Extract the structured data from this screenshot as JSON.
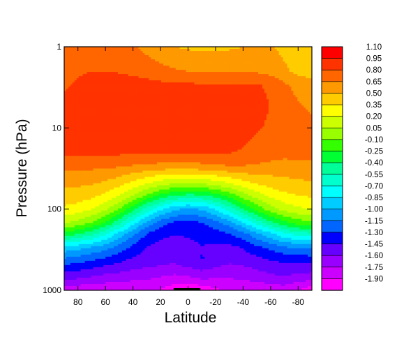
{
  "chart_data": {
    "type": "heatmap",
    "subtype": "filled-contour",
    "title": "",
    "xlabel": "Latitude",
    "ylabel": "Pressure (hPa)",
    "x_reversed": true,
    "xlim": [
      90,
      -90
    ],
    "x_ticks": [
      80,
      60,
      40,
      20,
      0,
      -20,
      -40,
      -60,
      -80
    ],
    "x_tick_labels": [
      "80",
      "60",
      "40",
      "20",
      "0",
      "-20",
      "-40",
      "-60",
      "-80"
    ],
    "y_scale": "log",
    "y_reversed": true,
    "ylim": [
      1000,
      1
    ],
    "y_ticks": [
      1,
      10,
      100,
      1000
    ],
    "y_tick_labels": [
      "1",
      "10",
      "100",
      "1000"
    ],
    "colorbar": {
      "placement": "right",
      "levels": [
        1.1,
        0.95,
        0.8,
        0.65,
        0.5,
        0.35,
        0.2,
        0.05,
        -0.1,
        -0.25,
        -0.4,
        -0.55,
        -0.7,
        -0.85,
        -1.0,
        -1.15,
        -1.3,
        -1.45,
        -1.6,
        -1.75,
        -1.9
      ],
      "labels": [
        "1.10",
        "0.95",
        "0.80",
        "0.65",
        "0.50",
        "0.35",
        "0.20",
        "0.05",
        "-0.10",
        "-0.25",
        "-0.40",
        "-0.55",
        "-0.70",
        "-0.85",
        "-1.00",
        "-1.15",
        "-1.30",
        "-1.45",
        "-1.60",
        "-1.75",
        "-1.90"
      ],
      "colors": [
        "#ff0000",
        "#ff3300",
        "#ff6600",
        "#ff9900",
        "#ffcc00",
        "#ffff00",
        "#ccff00",
        "#99ff00",
        "#33ff00",
        "#00ff33",
        "#00ff99",
        "#00ffcc",
        "#00ffff",
        "#00ccff",
        "#0099ff",
        "#0066ff",
        "#0000ff",
        "#6600ff",
        "#9900ff",
        "#cc00ff",
        "#ff00ff"
      ]
    },
    "fields": {
      "lat": [
        90,
        80,
        70,
        60,
        50,
        40,
        30,
        20,
        10,
        0,
        -10,
        -20,
        -30,
        -40,
        -50,
        -60,
        -70,
        -80,
        -90
      ],
      "pressure": [
        1,
        2,
        3,
        5,
        7,
        10,
        15,
        20,
        30,
        50,
        70,
        100,
        150,
        200,
        300,
        400,
        500,
        700,
        850,
        1000
      ],
      "values": [
        [
          0.78,
          0.78,
          0.78,
          0.77,
          0.74,
          0.68,
          0.6,
          0.54,
          0.5,
          0.48,
          0.47,
          0.47,
          0.48,
          0.5,
          0.53,
          0.52,
          0.45,
          0.4,
          0.38
        ],
        [
          0.78,
          0.79,
          0.8,
          0.8,
          0.79,
          0.77,
          0.74,
          0.7,
          0.67,
          0.65,
          0.64,
          0.63,
          0.63,
          0.63,
          0.63,
          0.6,
          0.53,
          0.46,
          0.43
        ],
        [
          0.79,
          0.81,
          0.83,
          0.85,
          0.86,
          0.86,
          0.85,
          0.84,
          0.83,
          0.83,
          0.82,
          0.82,
          0.82,
          0.82,
          0.82,
          0.76,
          0.68,
          0.6,
          0.55
        ],
        [
          0.82,
          0.84,
          0.86,
          0.88,
          0.89,
          0.9,
          0.9,
          0.9,
          0.9,
          0.9,
          0.9,
          0.9,
          0.89,
          0.88,
          0.87,
          0.79,
          0.72,
          0.66,
          0.62
        ],
        [
          0.82,
          0.85,
          0.87,
          0.88,
          0.89,
          0.89,
          0.89,
          0.89,
          0.89,
          0.89,
          0.89,
          0.88,
          0.88,
          0.87,
          0.86,
          0.78,
          0.72,
          0.68,
          0.65
        ],
        [
          0.84,
          0.85,
          0.85,
          0.86,
          0.85,
          0.84,
          0.84,
          0.86,
          0.88,
          0.89,
          0.89,
          0.88,
          0.87,
          0.86,
          0.82,
          0.77,
          0.72,
          0.68,
          0.66
        ],
        [
          0.84,
          0.84,
          0.84,
          0.84,
          0.84,
          0.84,
          0.84,
          0.84,
          0.84,
          0.85,
          0.86,
          0.86,
          0.85,
          0.82,
          0.77,
          0.74,
          0.72,
          0.7,
          0.68
        ],
        [
          0.83,
          0.83,
          0.83,
          0.83,
          0.83,
          0.83,
          0.83,
          0.82,
          0.82,
          0.82,
          0.82,
          0.82,
          0.81,
          0.78,
          0.75,
          0.73,
          0.71,
          0.7,
          0.69
        ],
        [
          0.68,
          0.68,
          0.68,
          0.67,
          0.66,
          0.63,
          0.61,
          0.59,
          0.58,
          0.58,
          0.6,
          0.62,
          0.64,
          0.64,
          0.63,
          0.6,
          0.58,
          0.6,
          0.62
        ],
        [
          0.52,
          0.52,
          0.5,
          0.46,
          0.38,
          0.28,
          0.18,
          0.08,
          0.02,
          0.0,
          0.02,
          0.08,
          0.16,
          0.26,
          0.34,
          0.4,
          0.44,
          0.46,
          0.47
        ],
        [
          0.44,
          0.42,
          0.38,
          0.3,
          0.18,
          0.02,
          -0.15,
          -0.32,
          -0.44,
          -0.48,
          -0.46,
          -0.36,
          -0.22,
          -0.05,
          0.1,
          0.22,
          0.3,
          0.34,
          0.36
        ],
        [
          0.32,
          0.28,
          0.2,
          0.08,
          -0.1,
          -0.35,
          -0.6,
          -0.82,
          -0.97,
          -1.02,
          -0.98,
          -0.84,
          -0.63,
          -0.4,
          -0.2,
          -0.02,
          0.1,
          0.17,
          0.2
        ],
        [
          0.05,
          -0.02,
          -0.12,
          -0.28,
          -0.52,
          -0.8,
          -1.06,
          -1.24,
          -1.34,
          -1.36,
          -1.32,
          -1.22,
          -1.08,
          -0.88,
          -0.66,
          -0.46,
          -0.3,
          -0.2,
          -0.15
        ],
        [
          -0.3,
          -0.38,
          -0.5,
          -0.68,
          -0.9,
          -1.12,
          -1.3,
          -1.4,
          -1.44,
          -1.43,
          -1.4,
          -1.36,
          -1.3,
          -1.2,
          -1.04,
          -0.88,
          -0.72,
          -0.62,
          -0.58
        ],
        [
          -0.9,
          -0.95,
          -1.02,
          -1.1,
          -1.22,
          -1.34,
          -1.46,
          -1.52,
          -1.54,
          -1.5,
          -1.46,
          -1.48,
          -1.5,
          -1.44,
          -1.34,
          -1.26,
          -1.18,
          -1.14,
          -1.12
        ],
        [
          -1.15,
          -1.2,
          -1.25,
          -1.3,
          -1.38,
          -1.46,
          -1.52,
          -1.55,
          -1.56,
          -1.5,
          -1.44,
          -1.5,
          -1.54,
          -1.52,
          -1.48,
          -1.42,
          -1.38,
          -1.36,
          -1.35
        ],
        [
          -1.32,
          -1.36,
          -1.4,
          -1.45,
          -1.5,
          -1.55,
          -1.58,
          -1.6,
          -1.62,
          -1.58,
          -1.52,
          -1.58,
          -1.62,
          -1.6,
          -1.56,
          -1.52,
          -1.49,
          -1.48,
          -1.48
        ],
        [
          -1.55,
          -1.58,
          -1.62,
          -1.66,
          -1.68,
          -1.7,
          -1.72,
          -1.76,
          -1.8,
          -1.78,
          -1.72,
          -1.74,
          -1.74,
          -1.72,
          -1.68,
          -1.64,
          -1.62,
          -1.66,
          -1.7
        ],
        [
          -1.72,
          -1.74,
          -1.76,
          -1.78,
          -1.8,
          -1.82,
          -1.84,
          -1.86,
          -1.9,
          -1.92,
          -1.88,
          -1.86,
          -1.84,
          -1.82,
          -1.8,
          -1.76,
          -1.74,
          -1.8,
          -1.86
        ],
        [
          -1.8,
          -1.82,
          -1.83,
          -1.85,
          -1.86,
          -1.87,
          -1.88,
          -1.9,
          -2.0,
          -2.05,
          -2.0,
          -1.92,
          -1.88,
          -1.86,
          -1.84,
          -1.8,
          -1.8,
          -1.9,
          -2.0
        ]
      ]
    }
  }
}
